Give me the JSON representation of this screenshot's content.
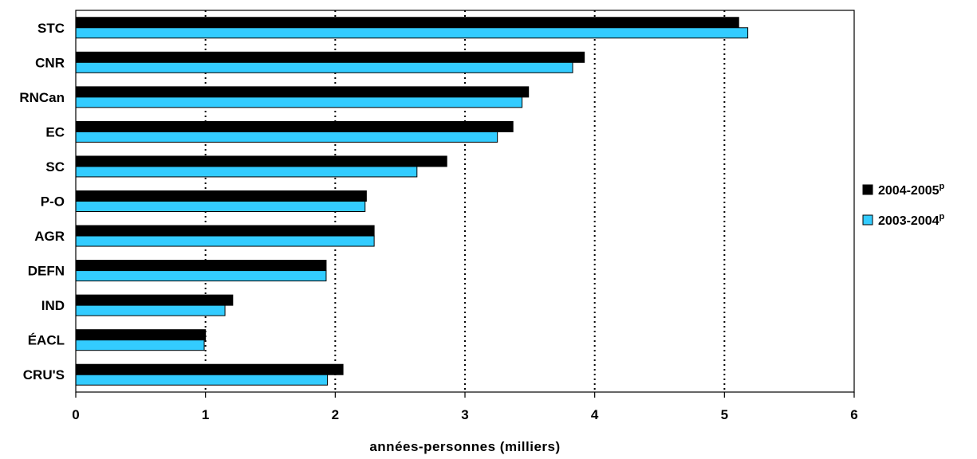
{
  "chart_data": {
    "type": "bar",
    "orientation": "horizontal",
    "categories": [
      "STC",
      "CNR",
      "RNCan",
      "EC",
      "SC",
      "P-O",
      "AGR",
      "DEFN",
      "IND",
      "ÉACL",
      "CRU'S"
    ],
    "series": [
      {
        "name": "2004-2005",
        "name_superscript": "p",
        "color": "#000000",
        "values": [
          5.11,
          3.92,
          3.49,
          3.37,
          2.86,
          2.24,
          2.3,
          1.93,
          1.21,
          1.0,
          2.06
        ]
      },
      {
        "name": "2003-2004",
        "name_superscript": "p",
        "color": "#33ccff",
        "values": [
          5.18,
          3.83,
          3.44,
          3.25,
          2.63,
          2.23,
          2.3,
          1.93,
          1.15,
          0.99,
          1.94
        ]
      }
    ],
    "xlabel": "années-personnes (milliers)",
    "xlim": [
      0,
      6
    ],
    "xticks": [
      "0",
      "1",
      "2",
      "3",
      "4",
      "5",
      "6"
    ],
    "grid": "vertical-dotted",
    "legend_position": "right"
  }
}
